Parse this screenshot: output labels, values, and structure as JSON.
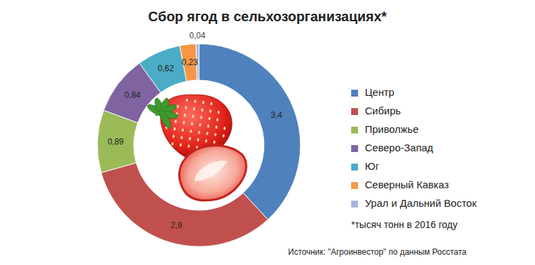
{
  "chart_data": {
    "type": "pie",
    "title": "Сбор ягод в сельхозорганизациях*",
    "categories": [
      "Центр",
      "Сибирь",
      "Приволжье",
      "Северо-Запад",
      "Юг",
      "Северный Кавказ",
      "Урал и Дальний Восток"
    ],
    "values": [
      3.4,
      2.9,
      0.89,
      0.84,
      0.62,
      0.23,
      0.04
    ],
    "value_labels": [
      "3,4",
      "2,9",
      "0,89",
      "0,84",
      "0,62",
      "0,23",
      "0,04"
    ],
    "colors": [
      "#4f81bd",
      "#c0504d",
      "#9bbb59",
      "#8064a2",
      "#4bacc6",
      "#f79646",
      "#a5b6db"
    ],
    "data_labels": true,
    "legend": "right",
    "annotations": [
      "*тысяч тонн в 2016 году",
      "Источник: \"Агроинвестор\" по данным Росстата"
    ]
  }
}
